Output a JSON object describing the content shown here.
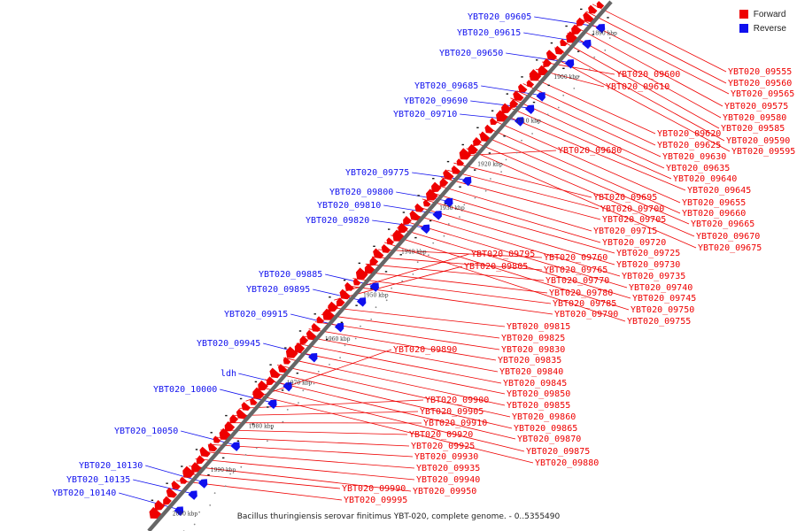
{
  "caption": "Bacillus thuringiensis serovar finitimus YBT-020, complete genome. - 0..5355490",
  "legend": [
    {
      "label": "Forward",
      "color": "#ee0000"
    },
    {
      "label": "Reverse",
      "color": "#1010ee"
    }
  ],
  "colors": {
    "forward": "#ee0000",
    "reverse": "#1010ee",
    "backbone": "#666666"
  },
  "ticks": [
    "1890 kbp",
    "1900 kbp",
    "1910 kbp",
    "1920 kbp",
    "1930 kbp",
    "1940 kbp",
    "1950 kbp",
    "1960 kbp",
    "1970 kbp",
    "1980 kbp",
    "1990 kbp",
    "2000 kbp"
  ],
  "reverse_labels": [
    "YBT020_09605",
    "YBT020_09615",
    "YBT020_09650",
    "YBT020_09685",
    "YBT020_09690",
    "YBT020_09710",
    "YBT020_09775",
    "YBT020_09800",
    "YBT020_09810",
    "YBT020_09820",
    "YBT020_09885",
    "YBT020_09895",
    "YBT020_09915",
    "YBT020_09945",
    "ldh",
    "YBT020_10000",
    "YBT020_10050",
    "YBT020_10130",
    "YBT020_10135",
    "YBT020_10140"
  ],
  "forward_labels": [
    "YBT020_09555",
    "YBT020_09560",
    "YBT020_09565",
    "YBT020_09575",
    "YBT020_09580",
    "YBT020_09585",
    "YBT020_09590",
    "YBT020_09595",
    "YBT020_09600",
    "YBT020_09610",
    "YBT020_09620",
    "YBT020_09625",
    "YBT020_09630",
    "YBT020_09635",
    "YBT020_09640",
    "YBT020_09645",
    "YBT020_09655",
    "YBT020_09660",
    "YBT020_09665",
    "YBT020_09670",
    "YBT020_09675",
    "YBT020_09680",
    "YBT020_09695",
    "YBT020_09700",
    "YBT020_09705",
    "YBT020_09715",
    "YBT020_09720",
    "YBT020_09725",
    "YBT020_09730",
    "YBT020_09735",
    "YBT020_09740",
    "YBT020_09745",
    "YBT020_09750",
    "YBT020_09755",
    "YBT020_09760",
    "YBT020_09765",
    "YBT020_09770",
    "YBT020_09780",
    "YBT020_09785",
    "YBT020_09790",
    "YBT020_09795",
    "YBT020_09805",
    "YBT020_09815",
    "YBT020_09825",
    "YBT020_09830",
    "YBT020_09835",
    "YBT020_09840",
    "YBT020_09845",
    "YBT020_09850",
    "YBT020_09855",
    "YBT020_09860",
    "YBT020_09865",
    "YBT020_09870",
    "YBT020_09875",
    "YBT020_09880",
    "YBT020_09890",
    "YBT020_09900",
    "YBT020_09905",
    "YBT020_09910",
    "YBT020_09920",
    "YBT020_09925",
    "YBT020_09930",
    "YBT020_09935",
    "YBT020_09940",
    "YBT020_09950",
    "YBT020_09990",
    "YBT020_09995"
  ]
}
